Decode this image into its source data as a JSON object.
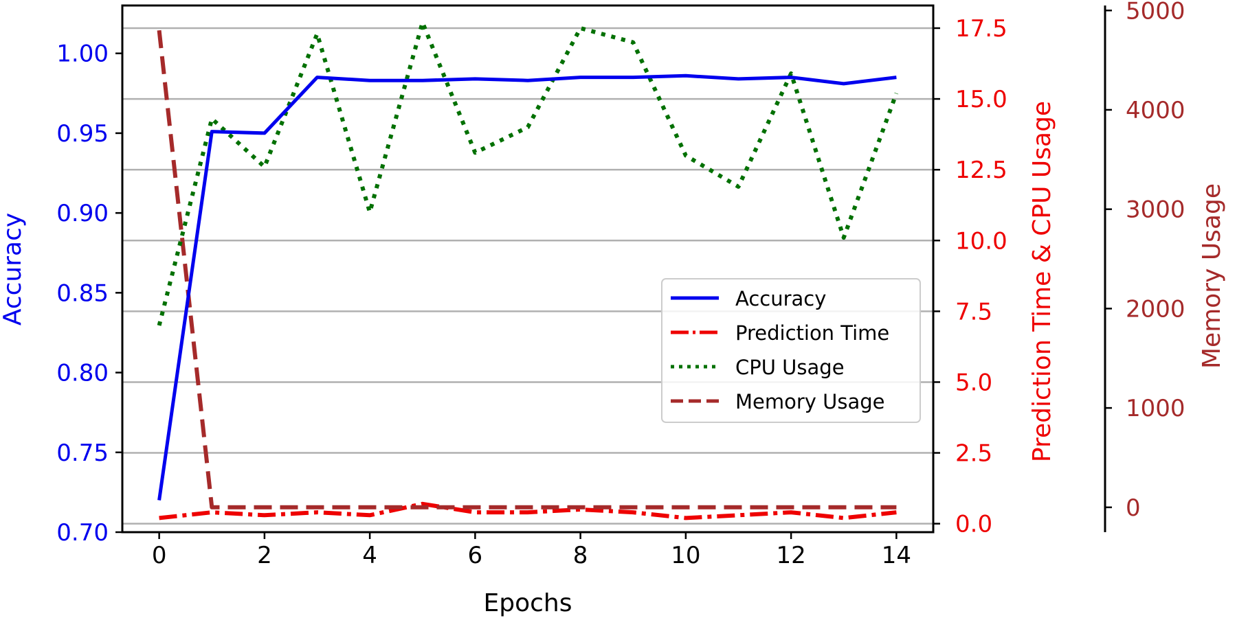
{
  "chart_data": {
    "type": "line",
    "title": "",
    "xlabel": "Epochs",
    "x": [
      0,
      1,
      2,
      3,
      4,
      5,
      6,
      7,
      8,
      9,
      10,
      11,
      12,
      13,
      14
    ],
    "xlim": [
      -0.7,
      14.7
    ],
    "xticks": [
      0,
      2,
      4,
      6,
      8,
      10,
      12,
      14
    ],
    "axes": [
      {
        "id": "accuracy",
        "side": "left",
        "label": "Accuracy",
        "color": "#0000ee",
        "ylim": [
          0.7,
          1.03
        ],
        "ticks": [
          "0.70",
          "0.75",
          "0.80",
          "0.85",
          "0.90",
          "0.95",
          "1.00"
        ]
      },
      {
        "id": "time_cpu",
        "side": "right",
        "label": "Prediction Time & CPU Usage",
        "color": "#ee0000",
        "ylim": [
          -0.3,
          18.3
        ],
        "ticks": [
          "0.0",
          "2.5",
          "5.0",
          "7.5",
          "10.0",
          "12.5",
          "15.0",
          "17.5"
        ]
      },
      {
        "id": "memory",
        "side": "right-outer",
        "label": "Memory Usage",
        "color": "#a52a2a",
        "ylim": [
          -250,
          5050
        ],
        "ticks": [
          "0",
          "1000",
          "2000",
          "3000",
          "4000",
          "5000"
        ]
      }
    ],
    "series": [
      {
        "name": "Accuracy",
        "axis": "accuracy",
        "color": "#0000ee",
        "style": "solid",
        "values": [
          0.72,
          0.951,
          0.95,
          0.985,
          0.983,
          0.983,
          0.984,
          0.983,
          0.985,
          0.985,
          0.986,
          0.984,
          0.985,
          0.981,
          0.985
        ]
      },
      {
        "name": "Prediction Time",
        "axis": "time_cpu",
        "color": "#ee0000",
        "style": "dashdot",
        "values": [
          0.2,
          0.4,
          0.3,
          0.4,
          0.3,
          0.7,
          0.4,
          0.4,
          0.5,
          0.4,
          0.2,
          0.3,
          0.4,
          0.2,
          0.4
        ]
      },
      {
        "name": "CPU Usage",
        "axis": "time_cpu",
        "color": "#007000",
        "style": "dotted",
        "values": [
          7.0,
          14.3,
          12.6,
          17.3,
          11.0,
          17.7,
          13.1,
          14.0,
          17.5,
          17.0,
          13.0,
          11.9,
          15.9,
          10.1,
          15.2
        ]
      },
      {
        "name": "Memory Usage",
        "axis": "memory",
        "color": "#a52a2a",
        "style": "dashed",
        "values": [
          4800,
          0,
          0,
          0,
          0,
          0,
          0,
          0,
          0,
          0,
          0,
          0,
          0,
          0,
          0
        ]
      }
    ],
    "grid": {
      "major_y": true,
      "x": false
    },
    "legend": {
      "position": "center-right",
      "entries": [
        "Accuracy",
        "Prediction Time",
        "CPU Usage",
        "Memory Usage"
      ]
    }
  }
}
